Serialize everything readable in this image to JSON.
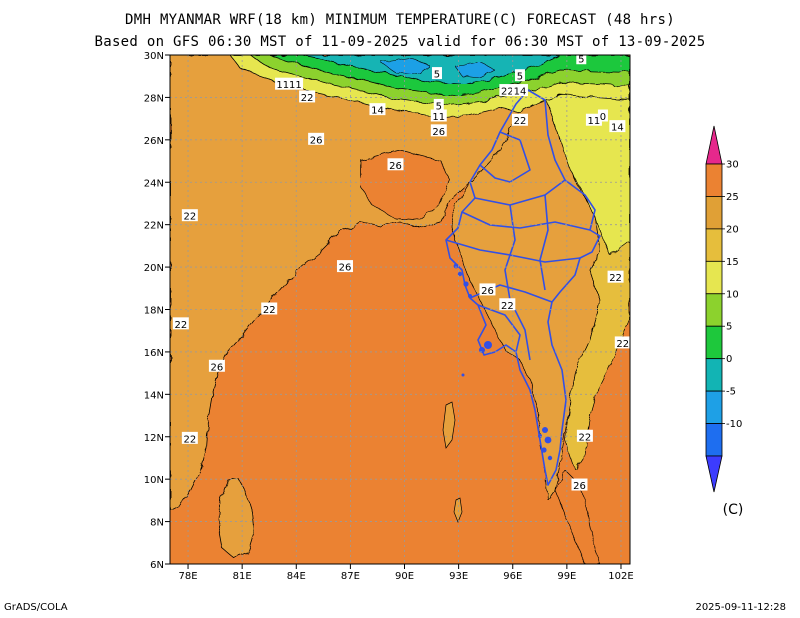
{
  "title_line1": "DMH MYANMAR WRF(18 km) MINIMUM TEMPERATURE(C) FORECAST (48 hrs)",
  "title_line2": "Based on GFS 06:30 MST of 11-09-2025 valid for 06:30 MST of 13-09-2025",
  "footer_left": "GrADS/COLA",
  "footer_right": "2025-09-11-12:28",
  "unit_label": "(C)",
  "map": {
    "lon_range": [
      77,
      102.5
    ],
    "lat_range": [
      6,
      30
    ],
    "lon_ticks": [
      {
        "v": 78,
        "label": "78E"
      },
      {
        "v": 81,
        "label": "81E"
      },
      {
        "v": 84,
        "label": "84E"
      },
      {
        "v": 87,
        "label": "87E"
      },
      {
        "v": 90,
        "label": "90E"
      },
      {
        "v": 93,
        "label": "93E"
      },
      {
        "v": 96,
        "label": "96E"
      },
      {
        "v": 99,
        "label": "99E"
      },
      {
        "v": 102,
        "label": "102E"
      }
    ],
    "lat_ticks": [
      {
        "v": 6,
        "label": "6N"
      },
      {
        "v": 8,
        "label": "8N"
      },
      {
        "v": 10,
        "label": "10N"
      },
      {
        "v": 12,
        "label": "12N"
      },
      {
        "v": 14,
        "label": "14N"
      },
      {
        "v": 16,
        "label": "16N"
      },
      {
        "v": 18,
        "label": "18N"
      },
      {
        "v": 20,
        "label": "20N"
      },
      {
        "v": 22,
        "label": "22N"
      },
      {
        "v": 24,
        "label": "24N"
      },
      {
        "v": 26,
        "label": "26N"
      },
      {
        "v": 28,
        "label": "28N"
      },
      {
        "v": 30,
        "label": "30N"
      }
    ],
    "grid": true,
    "contour_labels": [
      {
        "text": "5",
        "lon": 91.8,
        "lat": 29.1
      },
      {
        "text": "5",
        "lon": 96.4,
        "lat": 29.0
      },
      {
        "text": "5",
        "lon": 99.8,
        "lat": 29.8
      },
      {
        "text": "1111",
        "lon": 83.6,
        "lat": 28.6
      },
      {
        "text": "22",
        "lon": 84.6,
        "lat": 28.0
      },
      {
        "text": "14",
        "lon": 88.5,
        "lat": 27.4
      },
      {
        "text": "5",
        "lon": 91.9,
        "lat": 27.6
      },
      {
        "text": "11",
        "lon": 91.9,
        "lat": 27.1
      },
      {
        "text": "22",
        "lon": 95.7,
        "lat": 28.3
      },
      {
        "text": "14",
        "lon": 96.4,
        "lat": 28.3
      },
      {
        "text": "22",
        "lon": 96.4,
        "lat": 26.9
      },
      {
        "text": "26",
        "lon": 91.9,
        "lat": 26.4
      },
      {
        "text": "11",
        "lon": 100.5,
        "lat": 26.9
      },
      {
        "text": "0",
        "lon": 101.0,
        "lat": 27.1
      },
      {
        "text": "14",
        "lon": 101.8,
        "lat": 26.6
      },
      {
        "text": "26",
        "lon": 85.1,
        "lat": 26.0
      },
      {
        "text": "26",
        "lon": 89.5,
        "lat": 24.8
      },
      {
        "text": "22",
        "lon": 78.1,
        "lat": 22.4
      },
      {
        "text": "26",
        "lon": 86.7,
        "lat": 20.0
      },
      {
        "text": "22",
        "lon": 101.7,
        "lat": 19.5
      },
      {
        "text": "26",
        "lon": 94.6,
        "lat": 18.9
      },
      {
        "text": "22",
        "lon": 95.7,
        "lat": 18.2
      },
      {
        "text": "22",
        "lon": 82.5,
        "lat": 18.0
      },
      {
        "text": "22",
        "lon": 77.6,
        "lat": 17.3
      },
      {
        "text": "22",
        "lon": 102.1,
        "lat": 16.4
      },
      {
        "text": "26",
        "lon": 79.6,
        "lat": 15.3
      },
      {
        "text": "22",
        "lon": 100.0,
        "lat": 12.0
      },
      {
        "text": "22",
        "lon": 78.1,
        "lat": 11.9
      },
      {
        "text": "26",
        "lon": 99.7,
        "lat": 9.7
      }
    ]
  },
  "colorbar": {
    "levels": [
      -10,
      -5,
      0,
      5,
      10,
      15,
      20,
      25,
      30
    ],
    "colors": [
      "#1e6ef0",
      "#1ea0e6",
      "#12b4b4",
      "#1ec83c",
      "#8cd22d",
      "#e6e650",
      "#e6be3c",
      "#e0a036",
      "#eb8232"
    ],
    "below_color": "#3c3cff",
    "above_color": "#e6288c"
  }
}
